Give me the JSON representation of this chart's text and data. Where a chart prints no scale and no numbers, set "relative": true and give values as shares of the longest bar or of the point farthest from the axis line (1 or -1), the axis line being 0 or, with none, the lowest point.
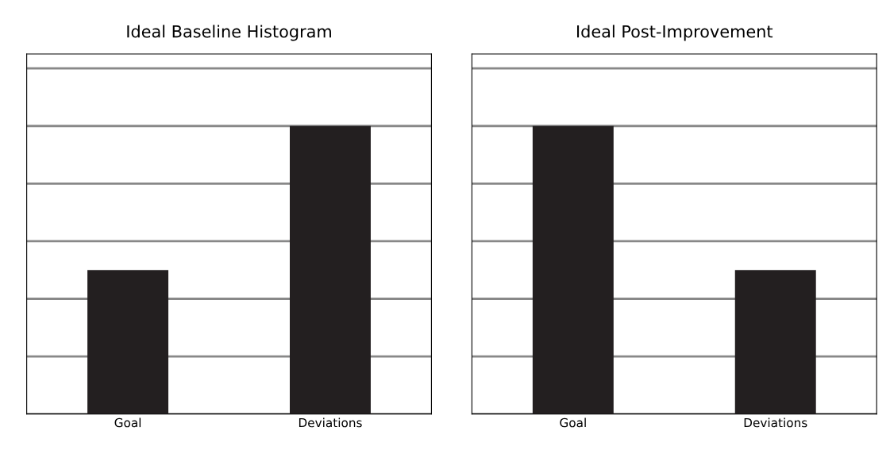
{
  "chart_data": [
    {
      "type": "bar",
      "title": "Ideal Baseline Histogram",
      "categories": [
        "Goal",
        "Deviations"
      ],
      "relative": true,
      "grid": "y",
      "series": [
        {
          "color": "#231f20",
          "values": [
            0.5,
            1
          ]
        }
      ]
    },
    {
      "type": "bar",
      "title": "Ideal Post-Improvement",
      "categories": [
        "Goal",
        "Deviations"
      ],
      "relative": true,
      "grid": "y",
      "series": [
        {
          "color": "#231f20",
          "values": [
            1,
            0.5
          ]
        }
      ]
    }
  ]
}
